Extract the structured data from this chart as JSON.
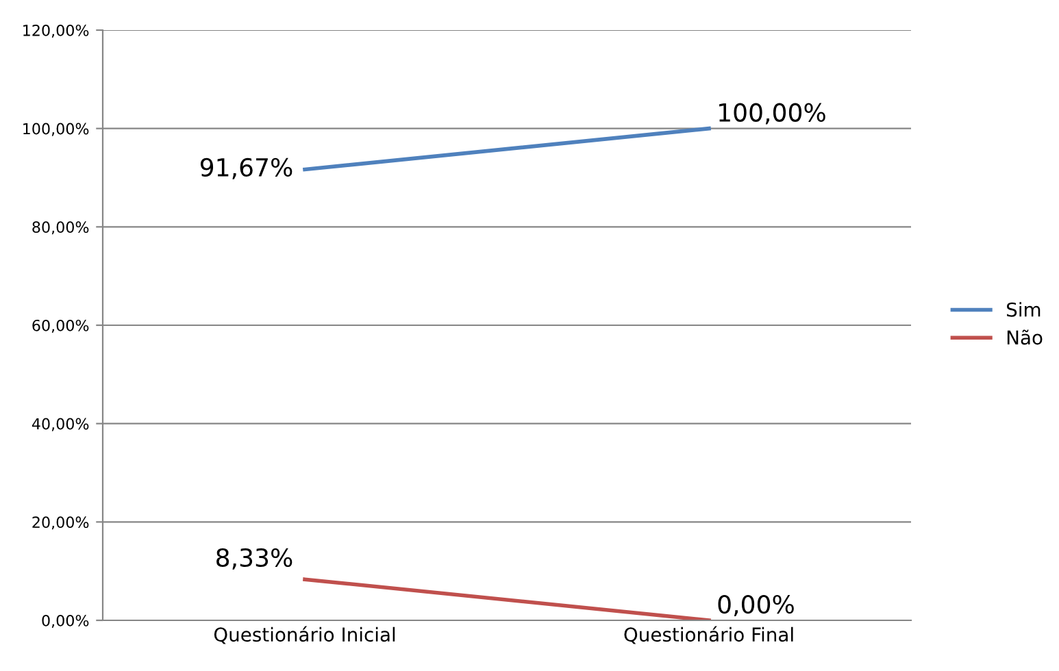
{
  "chart_data": {
    "type": "line",
    "categories": [
      "Questionário Inicial",
      "Questionário Final"
    ],
    "series": [
      {
        "name": "Sim",
        "color": "#4f81bd",
        "values": [
          91.67,
          100
        ],
        "value_labels": [
          "91,67%",
          "100,00%"
        ]
      },
      {
        "name": "Não",
        "color": "#c0504d",
        "values": [
          8.33,
          0
        ],
        "value_labels": [
          "8,33%",
          "0,00%"
        ]
      }
    ],
    "ylim": [
      0,
      120
    ],
    "yticks": [
      {
        "value": 0,
        "label": "0,00%"
      },
      {
        "value": 20,
        "label": "20,00%"
      },
      {
        "value": 40,
        "label": "40,00%"
      },
      {
        "value": 60,
        "label": "60,00%"
      },
      {
        "value": 80,
        "label": "80,00%"
      },
      {
        "value": 100,
        "label": "100,00%"
      },
      {
        "value": 120,
        "label": "120,00%"
      }
    ],
    "grid": "y",
    "legend": "right",
    "marker": "none",
    "line_style": "solid"
  }
}
